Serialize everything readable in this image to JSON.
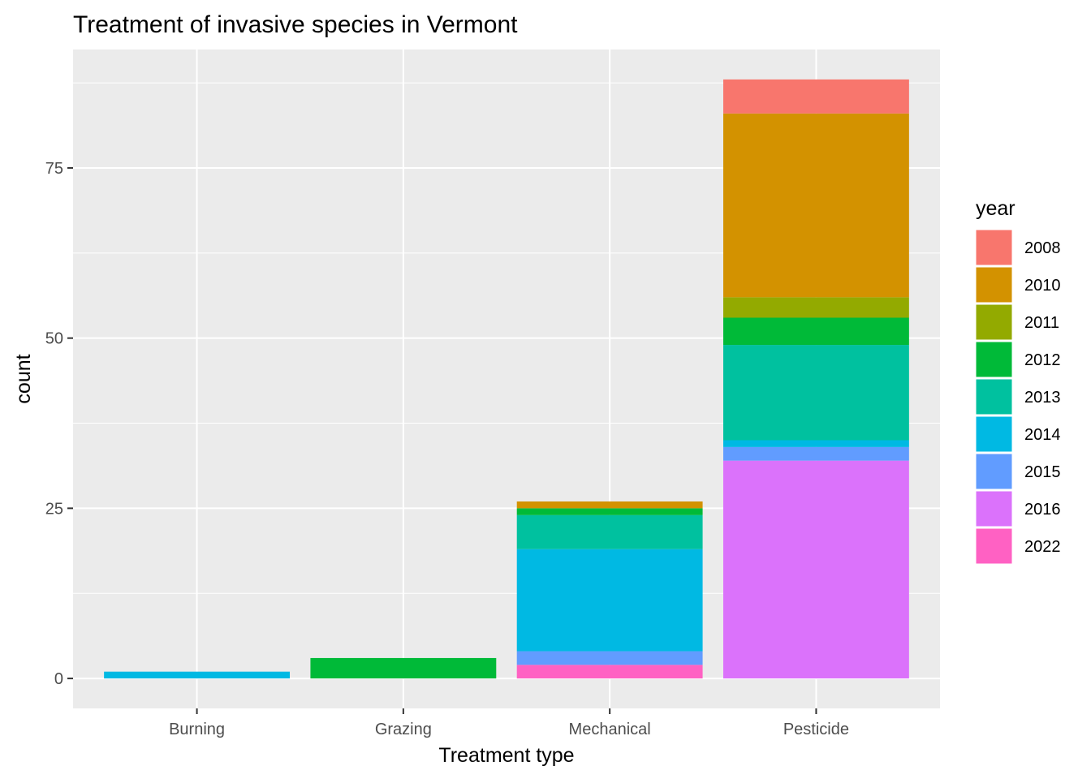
{
  "chart_data": {
    "type": "bar",
    "stacked": true,
    "title": "Treatment of invasive species in Vermont",
    "xlabel": "Treatment type",
    "ylabel": "count",
    "categories": [
      "Burning",
      "Grazing",
      "Mechanical",
      "Pesticide"
    ],
    "y_ticks": [
      0,
      25,
      50,
      75
    ],
    "ylim": [
      -4.4,
      92.4
    ],
    "grid": true,
    "legend": {
      "title": "year",
      "position": "right"
    },
    "series": [
      {
        "name": "2008",
        "color": "#F8766D",
        "values": [
          0,
          0,
          0,
          5
        ]
      },
      {
        "name": "2010",
        "color": "#D39200",
        "values": [
          0,
          0,
          1,
          27
        ]
      },
      {
        "name": "2011",
        "color": "#93AA00",
        "values": [
          0,
          0,
          0,
          3
        ]
      },
      {
        "name": "2012",
        "color": "#00BA38",
        "values": [
          0,
          3,
          1,
          4
        ]
      },
      {
        "name": "2013",
        "color": "#00C19F",
        "values": [
          0,
          0,
          5,
          14
        ]
      },
      {
        "name": "2014",
        "color": "#00B9E3",
        "values": [
          1,
          0,
          15,
          1
        ]
      },
      {
        "name": "2015",
        "color": "#619CFF",
        "values": [
          0,
          0,
          2,
          2
        ]
      },
      {
        "name": "2016",
        "color": "#DB72FB",
        "values": [
          0,
          0,
          0,
          32
        ]
      },
      {
        "name": "2022",
        "color": "#FF61C3",
        "values": [
          0,
          0,
          2,
          0
        ]
      }
    ]
  }
}
